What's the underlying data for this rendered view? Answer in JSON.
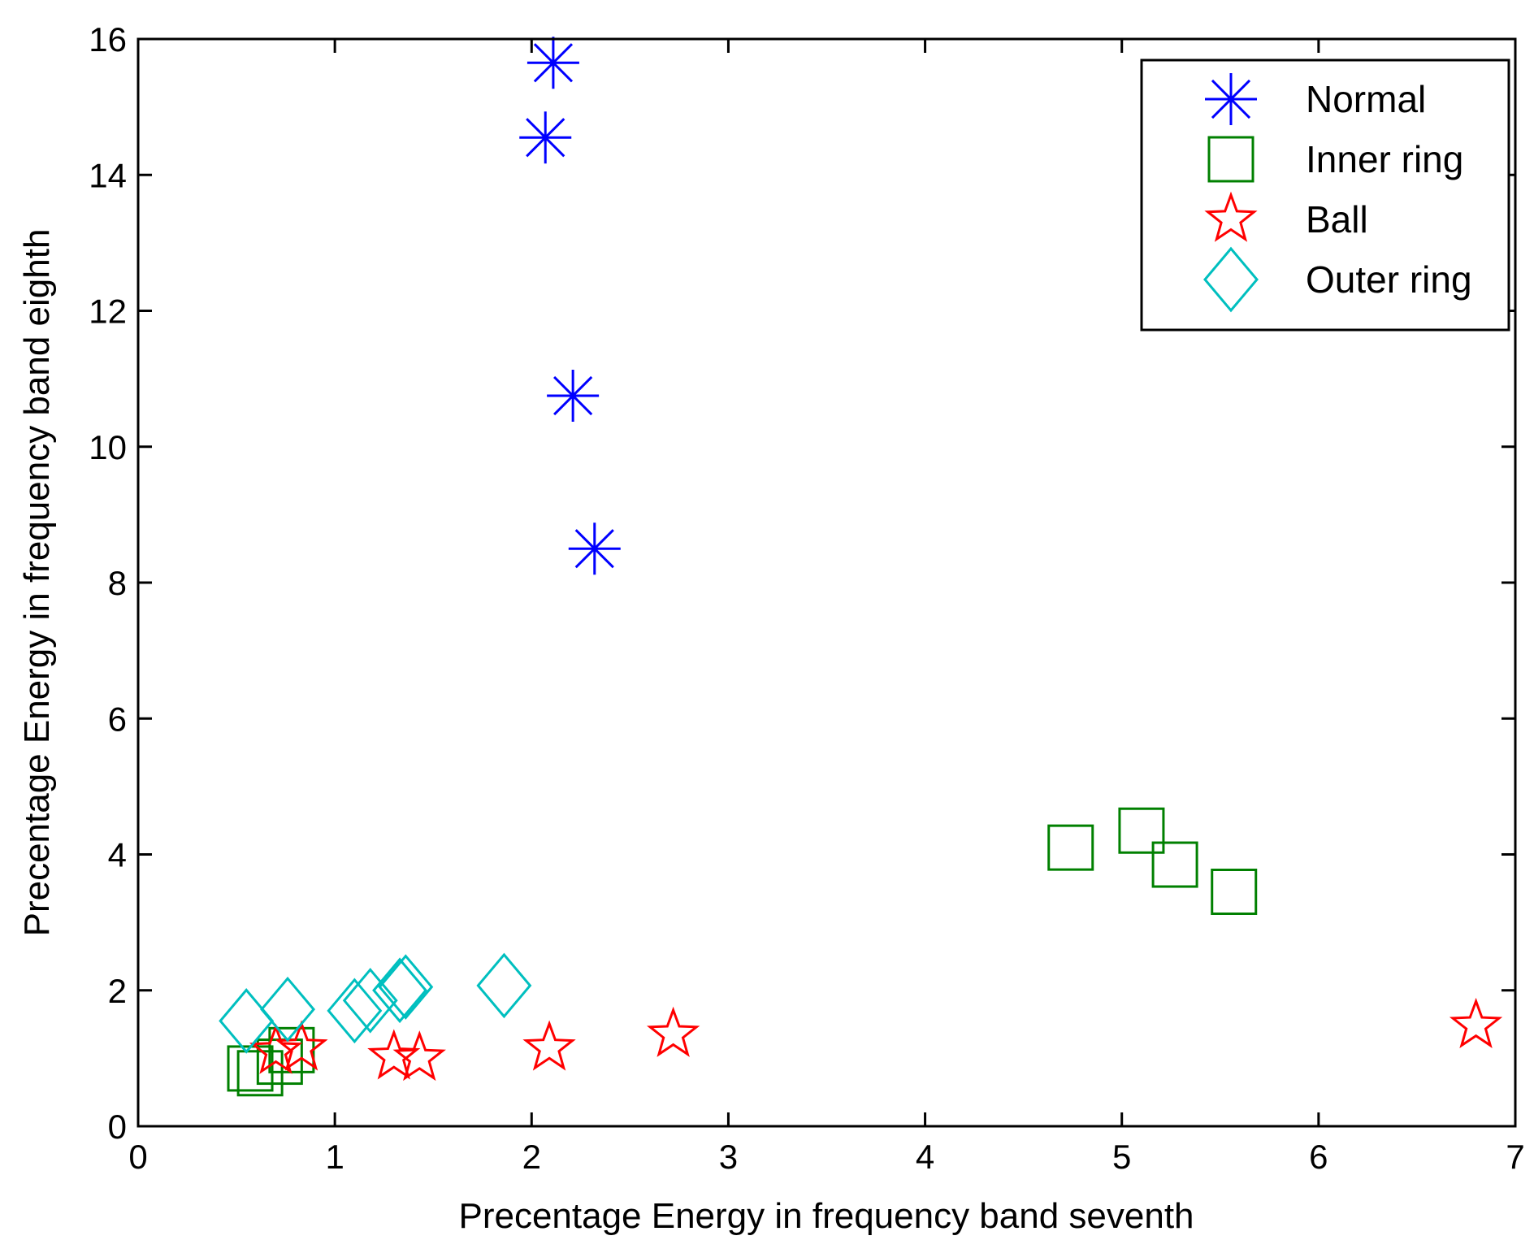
{
  "chart_data": {
    "type": "scatter",
    "title": "",
    "xlabel": "Precentage Energy in frequency band seventh",
    "ylabel": "Precentage Energy in frequency band eighth",
    "xlim": [
      0,
      7
    ],
    "ylim": [
      0,
      16
    ],
    "xticks": [
      0,
      1,
      2,
      3,
      4,
      5,
      6,
      7
    ],
    "yticks": [
      0,
      2,
      4,
      6,
      8,
      10,
      12,
      14,
      16
    ],
    "grid": false,
    "legend_position": "top-right",
    "series": [
      {
        "name": "Normal",
        "marker": "asterisk",
        "color": "#0000ff",
        "points": [
          [
            2.11,
            15.65
          ],
          [
            2.07,
            14.55
          ],
          [
            2.21,
            10.75
          ],
          [
            2.32,
            8.5
          ]
        ]
      },
      {
        "name": "Inner ring",
        "marker": "square",
        "color": "#008000",
        "points": [
          [
            4.74,
            4.1
          ],
          [
            5.1,
            4.35
          ],
          [
            5.27,
            3.85
          ],
          [
            5.57,
            3.45
          ],
          [
            0.57,
            0.85
          ],
          [
            0.62,
            0.78
          ],
          [
            0.72,
            0.95
          ],
          [
            0.78,
            1.12
          ]
        ]
      },
      {
        "name": "Ball",
        "marker": "pentagram",
        "color": "#ff0000",
        "points": [
          [
            0.7,
            1.1
          ],
          [
            0.83,
            1.15
          ],
          [
            1.3,
            1.02
          ],
          [
            1.43,
            1.0
          ],
          [
            2.09,
            1.15
          ],
          [
            2.72,
            1.35
          ],
          [
            6.8,
            1.48
          ]
        ]
      },
      {
        "name": "Outer ring",
        "marker": "diamond",
        "color": "#00bfbf",
        "points": [
          [
            0.55,
            1.55
          ],
          [
            0.76,
            1.72
          ],
          [
            1.1,
            1.7
          ],
          [
            1.18,
            1.85
          ],
          [
            1.33,
            2.0
          ],
          [
            1.36,
            2.05
          ],
          [
            1.86,
            2.07
          ]
        ]
      }
    ]
  }
}
